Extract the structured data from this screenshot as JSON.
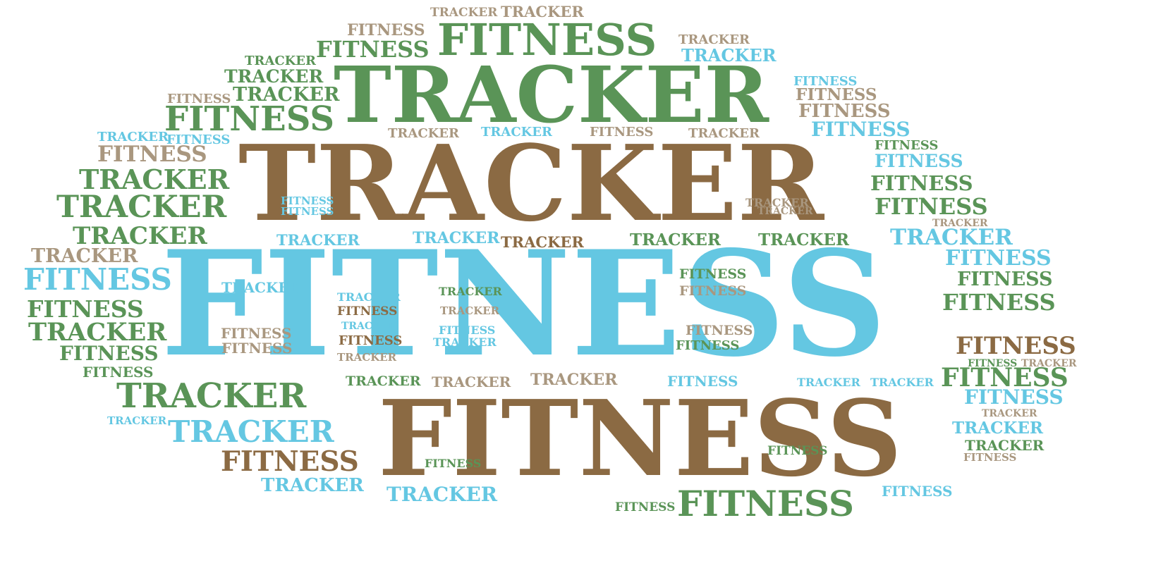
{
  "palette": {
    "green": "#5a9457",
    "brown": "#8b6a43",
    "tan": "#a9977f",
    "blue": "#64c7e2"
  },
  "word_cloud": [
    {
      "text": "TRACKER",
      "color": "tan"
    },
    {
      "text": "TRACKER",
      "color": "tan"
    },
    {
      "text": "FITNESS",
      "color": "tan"
    },
    {
      "text": "FITNESS",
      "color": "green"
    },
    {
      "text": "FITNESS",
      "color": "green"
    },
    {
      "text": "TRACKER",
      "color": "tan"
    },
    {
      "text": "TRACKER",
      "color": "blue"
    },
    {
      "text": "TRACKER",
      "color": "green"
    },
    {
      "text": "TRACKER",
      "color": "green"
    },
    {
      "text": "TRACKER",
      "color": "green"
    },
    {
      "text": "TRACKER",
      "color": "green"
    },
    {
      "text": "FITNESS",
      "color": "tan"
    },
    {
      "text": "FITNESS",
      "color": "green"
    },
    {
      "text": "FITNESS",
      "color": "blue"
    },
    {
      "text": "FITNESS",
      "color": "tan"
    },
    {
      "text": "FITNESS",
      "color": "tan"
    },
    {
      "text": "TRACKER",
      "color": "tan"
    },
    {
      "text": "TRACKER",
      "color": "blue"
    },
    {
      "text": "FITNESS",
      "color": "tan"
    },
    {
      "text": "TRACKER",
      "color": "tan"
    },
    {
      "text": "FITNESS",
      "color": "blue"
    },
    {
      "text": "TRACKER",
      "color": "blue"
    },
    {
      "text": "FITNESS",
      "color": "blue"
    },
    {
      "text": "FITNESS",
      "color": "tan"
    },
    {
      "text": "FITNESS",
      "color": "green"
    },
    {
      "text": "FITNESS",
      "color": "blue"
    },
    {
      "text": "TRACKER",
      "color": "brown"
    },
    {
      "text": "TRACKER",
      "color": "green"
    },
    {
      "text": "FITNESS",
      "color": "green"
    },
    {
      "text": "TRACKER",
      "color": "green"
    },
    {
      "text": "FITNESS",
      "color": "green"
    },
    {
      "text": "FITNESS",
      "color": "blue"
    },
    {
      "text": "FITNESS",
      "color": "blue"
    },
    {
      "text": "TRACKER",
      "color": "tan"
    },
    {
      "text": "TRACKER",
      "color": "tan"
    },
    {
      "text": "TRACKER",
      "color": "green"
    },
    {
      "text": "TRACKER",
      "color": "tan"
    },
    {
      "text": "TRACKER",
      "color": "blue"
    },
    {
      "text": "TRACKER",
      "color": "blue"
    },
    {
      "text": "TRACKER",
      "color": "brown"
    },
    {
      "text": "TRACKER",
      "color": "green"
    },
    {
      "text": "TRACKER",
      "color": "green"
    },
    {
      "text": "TRACKER",
      "color": "blue"
    },
    {
      "text": "TRACKER",
      "color": "tan"
    },
    {
      "text": "FITNESS",
      "color": "blue"
    },
    {
      "text": "FITNESS",
      "color": "blue"
    },
    {
      "text": "FITNESS",
      "color": "blue"
    },
    {
      "text": "FITNESS",
      "color": "green"
    },
    {
      "text": "FITNESS",
      "color": "green"
    },
    {
      "text": "FITNESS",
      "color": "tan"
    },
    {
      "text": "TRACKER",
      "color": "blue"
    },
    {
      "text": "TRACKER",
      "color": "green"
    },
    {
      "text": "TRACKER",
      "color": "blue"
    },
    {
      "text": "FITNESS",
      "color": "green"
    },
    {
      "text": "TRACKER",
      "color": "tan"
    },
    {
      "text": "FITNESS",
      "color": "brown"
    },
    {
      "text": "FITNESS",
      "color": "tan"
    },
    {
      "text": "FITNESS",
      "color": "green"
    },
    {
      "text": "TRACKER",
      "color": "green"
    },
    {
      "text": "FITNESS",
      "color": "tan"
    },
    {
      "text": "TRACKER",
      "color": "tan"
    },
    {
      "text": "FITNESS",
      "color": "tan"
    },
    {
      "text": "TRACKER",
      "color": "blue"
    },
    {
      "text": "FITNESS",
      "color": "blue"
    },
    {
      "text": "TRACKER",
      "color": "blue"
    },
    {
      "text": "FITNESS",
      "color": "brown"
    },
    {
      "text": "FITNESS",
      "color": "brown"
    },
    {
      "text": "FITNESS",
      "color": "green"
    },
    {
      "text": "FITNESS",
      "color": "green"
    },
    {
      "text": "TRACKER",
      "color": "tan"
    },
    {
      "text": "FITNESS",
      "color": "green"
    },
    {
      "text": "TRACKER",
      "color": "green"
    },
    {
      "text": "TRACKER",
      "color": "tan"
    },
    {
      "text": "FITNESS",
      "color": "blue"
    },
    {
      "text": "TRACKER",
      "color": "blue"
    },
    {
      "text": "TRACKER",
      "color": "tan"
    },
    {
      "text": "FITNESS",
      "color": "green"
    },
    {
      "text": "FITNESS",
      "color": "green"
    },
    {
      "text": "FITNESS",
      "color": "blue"
    },
    {
      "text": "TRACKER",
      "color": "green"
    },
    {
      "text": "TRACKER",
      "color": "blue"
    },
    {
      "text": "TRACKER",
      "color": "blue"
    },
    {
      "text": "TRACKER",
      "color": "blue"
    },
    {
      "text": "TRACKER",
      "color": "tan"
    },
    {
      "text": "FITNESS",
      "color": "brown"
    },
    {
      "text": "FITNESS",
      "color": "green"
    },
    {
      "text": "FITNESS",
      "color": "green"
    },
    {
      "text": "TRACKER",
      "color": "blue"
    },
    {
      "text": "TRACKER",
      "color": "blue"
    },
    {
      "text": "TRACKER",
      "color": "green"
    },
    {
      "text": "FITNESS",
      "color": "green"
    },
    {
      "text": "FITNESS",
      "color": "green"
    },
    {
      "text": "FITNESS",
      "color": "tan"
    },
    {
      "text": "FITNESS",
      "color": "brown"
    },
    {
      "text": "TRACKER",
      "color": "blue"
    },
    {
      "text": "FITNESS",
      "color": "blue"
    }
  ]
}
